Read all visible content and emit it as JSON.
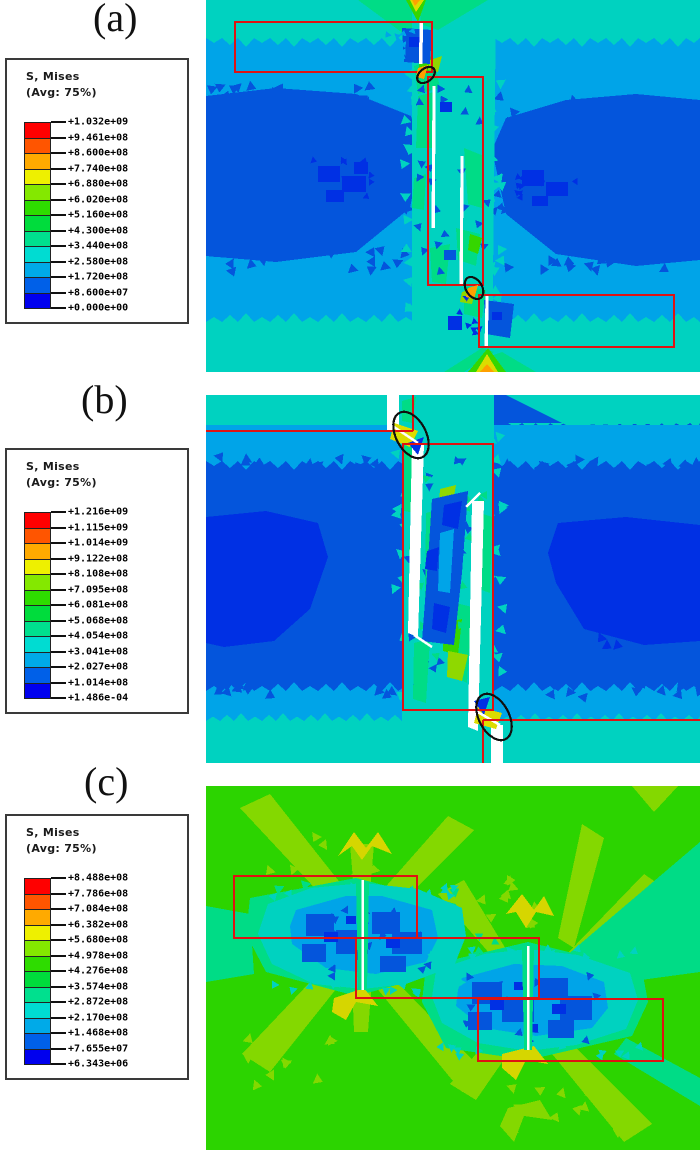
{
  "figure": {
    "annotation_red": "#e01212",
    "ellipse_black": "#101010",
    "palette": [
      "#ff0000",
      "#ff5500",
      "#ffaa00",
      "#eef000",
      "#84e800",
      "#2edc00",
      "#00dc3c",
      "#00e08e",
      "#00dcd2",
      "#00aae8",
      "#0060e8",
      "#0000ee"
    ],
    "panels": [
      {
        "id": "a",
        "label": "(a)",
        "legend": {
          "title": "S, Mises",
          "subtitle": "(Avg: 75%)",
          "values": [
            "+1.032e+09",
            "+9.461e+08",
            "+8.600e+08",
            "+7.740e+08",
            "+6.880e+08",
            "+6.020e+08",
            "+5.160e+08",
            "+4.300e+08",
            "+3.440e+08",
            "+2.580e+08",
            "+1.720e+08",
            "+8.600e+07",
            "+0.000e+00"
          ]
        }
      },
      {
        "id": "b",
        "label": "(b)",
        "legend": {
          "title": "S, Mises",
          "subtitle": "(Avg: 75%)",
          "values": [
            "+1.216e+09",
            "+1.115e+09",
            "+1.014e+09",
            "+9.122e+08",
            "+8.108e+08",
            "+7.095e+08",
            "+6.081e+08",
            "+5.068e+08",
            "+4.054e+08",
            "+3.041e+08",
            "+2.027e+08",
            "+1.014e+08",
            "+1.486e-04"
          ]
        }
      },
      {
        "id": "c",
        "label": "(c)",
        "legend": {
          "title": "S, Mises",
          "subtitle": "(Avg: 75%)",
          "values": [
            "+8.488e+08",
            "+7.786e+08",
            "+7.084e+08",
            "+6.382e+08",
            "+5.680e+08",
            "+4.978e+08",
            "+4.276e+08",
            "+3.574e+08",
            "+2.872e+08",
            "+2.170e+08",
            "+1.468e+08",
            "+7.655e+07",
            "+6.343e+06"
          ]
        }
      }
    ]
  },
  "chart_data": [
    {
      "type": "heatmap",
      "title": "S, Mises (Avg: 75%)",
      "panel": "a",
      "legend_ticks": [
        1032000000.0,
        946100000.0,
        860000000.0,
        774000000.0,
        688000000.0,
        602000000.0,
        516000000.0,
        430000000.0,
        344000000.0,
        258000000.0,
        172000000.0,
        86000000.0,
        0.0
      ],
      "max": 1032000000.0,
      "min": 0.0,
      "legend_position": "left"
    },
    {
      "type": "heatmap",
      "title": "S, Mises (Avg: 75%)",
      "panel": "b",
      "legend_ticks": [
        1216000000.0,
        1115000000.0,
        1014000000.0,
        912200000.0,
        810800000.0,
        709500000.0,
        608100000.0,
        506800000.0,
        405400000.0,
        304100000.0,
        202700000.0,
        101400000.0,
        0.0001486
      ],
      "max": 1216000000.0,
      "min": 0.0001486,
      "legend_position": "left"
    },
    {
      "type": "heatmap",
      "title": "S, Mises (Avg: 75%)",
      "panel": "c",
      "legend_ticks": [
        848800000.0,
        778600000.0,
        708400000.0,
        638200000.0,
        568000000.0,
        497800000.0,
        427600000.0,
        357400000.0,
        287200000.0,
        217000000.0,
        146800000.0,
        76550000.0,
        6343000.0
      ],
      "max": 848800000.0,
      "min": 6343000.0,
      "legend_position": "left"
    }
  ]
}
